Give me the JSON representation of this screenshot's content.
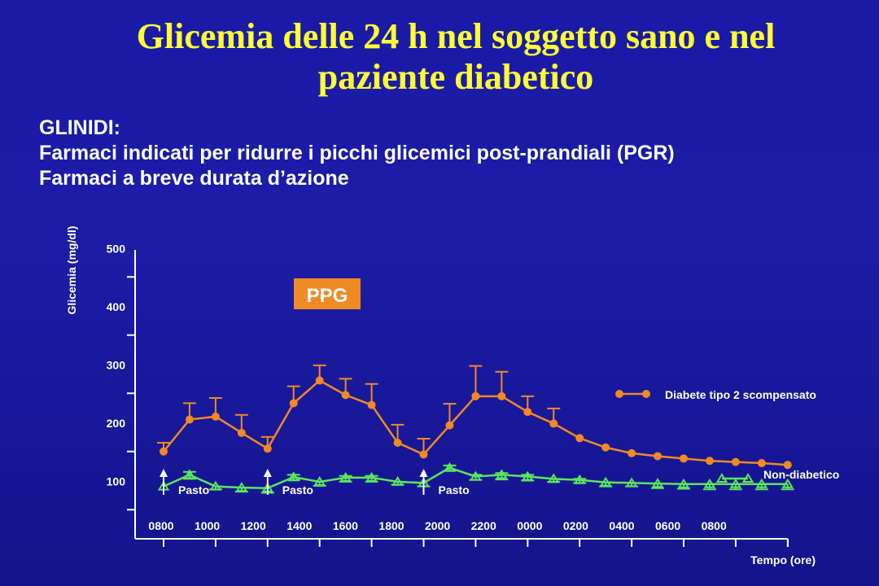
{
  "slide": {
    "title_line1": "Glicemia delle 24 h nel soggetto sano e nel",
    "title_line2": "paziente diabetico",
    "subtitle_lines": [
      "GLINIDI:",
      "Farmaci indicati per ridurre i picchi glicemici post-prandiali (PGR)",
      "Farmaci a breve durata d’azione"
    ]
  },
  "chart_data": {
    "type": "line",
    "title": "",
    "ylabel": "Glicemia (mg/dl)",
    "xlabel": "Tempo (ore)",
    "ylim": [
      0,
      500
    ],
    "yticks": [
      100,
      200,
      300,
      400,
      500
    ],
    "xticklabels": [
      "0800",
      "1000",
      "1200",
      "1400",
      "1600",
      "1800",
      "2000",
      "2200",
      "0000",
      "0200",
      "0400",
      "0600",
      "0800"
    ],
    "x_hours": [
      0,
      1,
      2,
      3,
      4,
      5,
      6,
      7,
      8,
      9,
      10,
      11,
      12,
      13,
      14,
      15,
      16,
      17,
      18,
      19,
      20,
      21,
      22,
      23,
      24
    ],
    "series": [
      {
        "name": "Diabete tipo 2 scompensato",
        "color": "#f08a24",
        "marker": "circle",
        "values": [
          150,
          205,
          210,
          182,
          155,
          233,
          272,
          247,
          230,
          165,
          145,
          195,
          245,
          245,
          218,
          198,
          173,
          157,
          147,
          142,
          138,
          134,
          132,
          130,
          127
        ],
        "error_upper": [
          165,
          233,
          242,
          213,
          175,
          262,
          298,
          275,
          266,
          196,
          172,
          232,
          297,
          287,
          245,
          224,
          null,
          null,
          null,
          null,
          null,
          null,
          null,
          null,
          null
        ]
      },
      {
        "name": "Non-diabetico",
        "color": "#5ce65c",
        "marker": "triangle",
        "values": [
          90,
          110,
          90,
          88,
          87,
          106,
          98,
          105,
          105,
          98,
          96,
          122,
          107,
          110,
          107,
          103,
          101,
          97,
          96,
          95,
          94,
          94,
          94,
          94,
          94
        ],
        "error_upper": [
          null,
          115,
          null,
          null,
          null,
          110,
          null,
          108,
          108,
          null,
          null,
          126,
          110,
          113,
          110,
          null,
          103,
          null,
          null,
          null,
          null,
          null,
          null,
          null,
          null
        ],
        "error_lower": [
          null,
          103,
          85,
          81,
          79,
          101,
          91,
          98,
          98,
          93,
          90,
          117,
          101,
          102,
          100,
          98,
          96,
          90,
          90,
          87,
          86,
          85,
          85,
          85,
          85
        ]
      }
    ],
    "annotations": [
      {
        "label": "PPG",
        "x_hour": 6.6,
        "y": 390
      },
      {
        "label": "Pasto",
        "x_hour": 0
      },
      {
        "label": "Pasto",
        "x_hour": 4
      },
      {
        "label": "Pasto",
        "x_hour": 10
      }
    ],
    "legend_placement": "right",
    "grid": false
  }
}
